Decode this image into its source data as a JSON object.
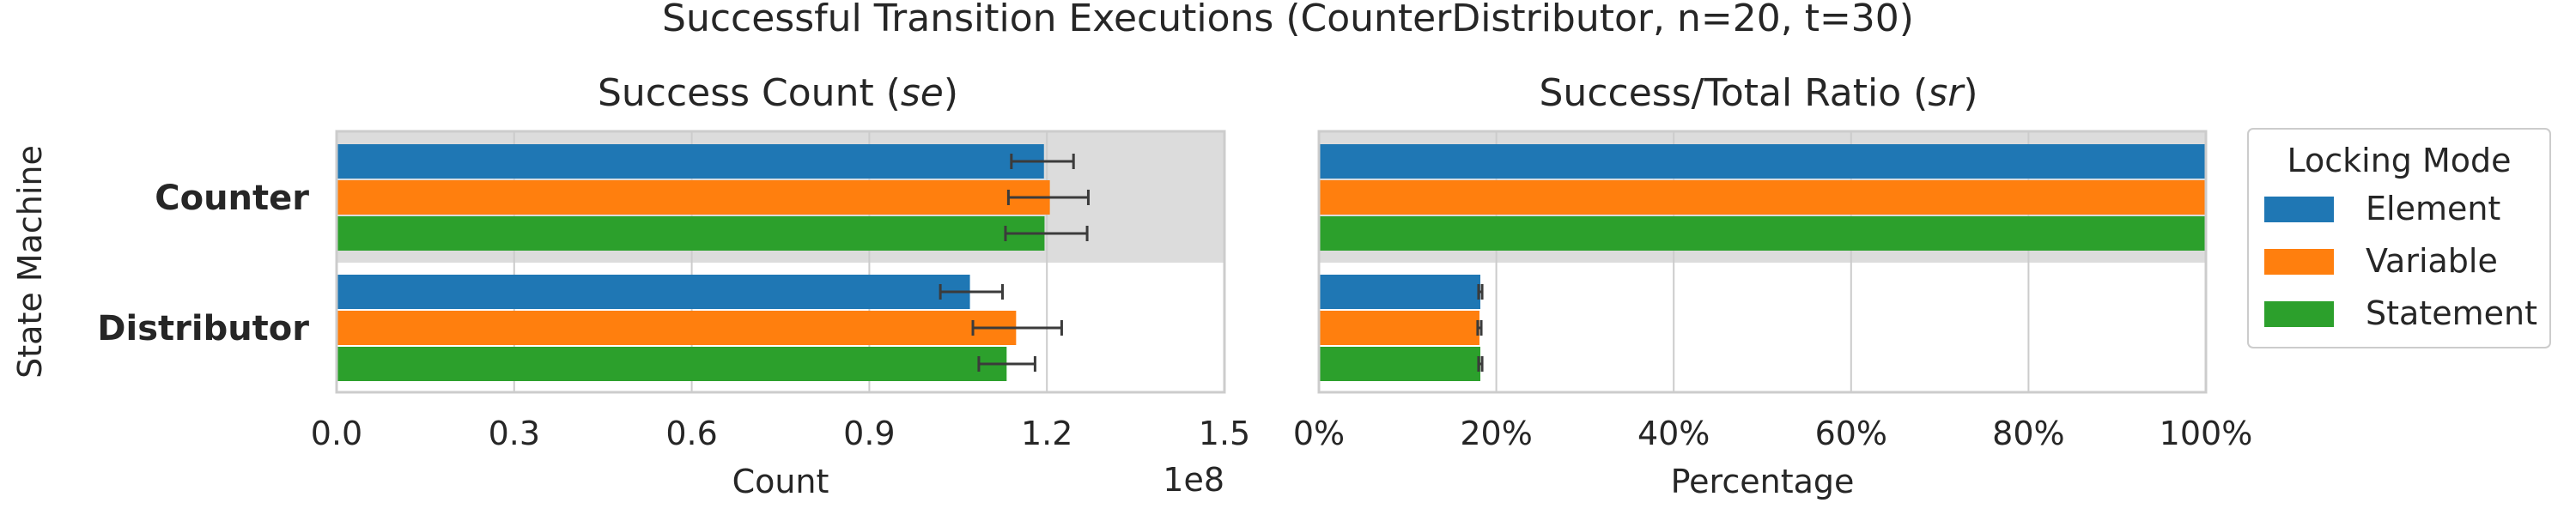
{
  "figure": {
    "suptitle": "Successful Transition Executions (CounterDistributor, n=20, t=30)",
    "shared_ylabel": "State Machine"
  },
  "legend": {
    "title": "Locking Mode",
    "placement": "right",
    "entries": [
      {
        "label": "Element",
        "color": "#1f77b4"
      },
      {
        "label": "Variable",
        "color": "#ff7f0e"
      },
      {
        "label": "Statement",
        "color": "#2ca02c"
      }
    ]
  },
  "highlight": {
    "category": "Counter",
    "color": "#dcdcdc"
  },
  "chart_data": [
    {
      "type": "bar",
      "orientation": "horizontal",
      "title_prefix": "Success Count (",
      "title_em": "se",
      "title_suffix": ")",
      "xlabel": "Count",
      "ylabel": "State Machine",
      "offset_label": "1e8",
      "categories": [
        "Counter",
        "Distributor"
      ],
      "xlim": [
        0,
        1.5
      ],
      "xticks": [
        0.0,
        0.3,
        0.6,
        0.9,
        1.2,
        1.5
      ],
      "xtick_labels": [
        "0.0",
        "0.3",
        "0.6",
        "0.9",
        "1.2",
        "1.5"
      ],
      "grid": true,
      "error_bars": true,
      "series": [
        {
          "name": "Element",
          "values": [
            1.195,
            1.07
          ],
          "err_low": [
            1.14,
            1.02
          ],
          "err_high": [
            1.245,
            1.125
          ]
        },
        {
          "name": "Variable",
          "values": [
            1.205,
            1.148
          ],
          "err_low": [
            1.135,
            1.075
          ],
          "err_high": [
            1.27,
            1.225
          ]
        },
        {
          "name": "Statement",
          "values": [
            1.196,
            1.132
          ],
          "err_low": [
            1.13,
            1.085
          ],
          "err_high": [
            1.268,
            1.18
          ]
        }
      ]
    },
    {
      "type": "bar",
      "orientation": "horizontal",
      "title_prefix": "Success/Total Ratio (",
      "title_em": "sr",
      "title_suffix": ")",
      "xlabel": "Percentage",
      "categories": [
        "Counter",
        "Distributor"
      ],
      "xlim": [
        0,
        100
      ],
      "xticks": [
        0,
        20,
        40,
        60,
        80,
        100
      ],
      "xtick_labels": [
        "0%",
        "20%",
        "40%",
        "60%",
        "80%",
        "100%"
      ],
      "grid": true,
      "error_bars": true,
      "series": [
        {
          "name": "Element",
          "values": [
            100,
            18.2
          ],
          "err_low": [
            100,
            18.0
          ],
          "err_high": [
            100,
            18.4
          ]
        },
        {
          "name": "Variable",
          "values": [
            100,
            18.1
          ],
          "err_low": [
            100,
            17.9
          ],
          "err_high": [
            100,
            18.3
          ]
        },
        {
          "name": "Statement",
          "values": [
            100,
            18.2
          ],
          "err_low": [
            100,
            18.0
          ],
          "err_high": [
            100,
            18.4
          ]
        }
      ]
    }
  ]
}
